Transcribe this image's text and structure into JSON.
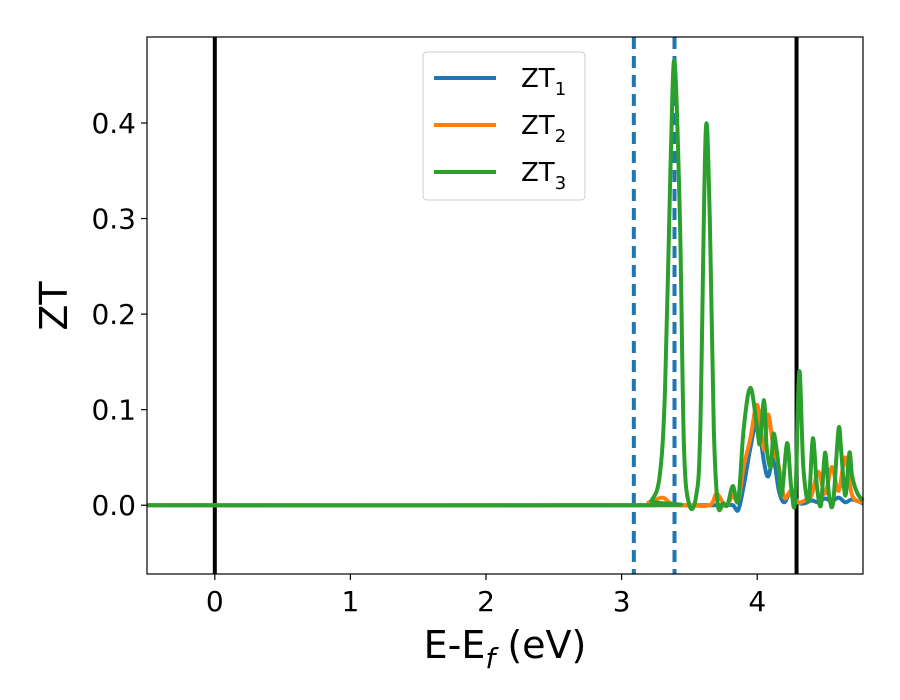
{
  "chart_data": {
    "type": "line",
    "xlabel": "E-E",
    "xlabel_sub": "f",
    "xlabel_unit": " (eV)",
    "ylabel": "ZT",
    "xlim": [
      -0.5,
      4.78
    ],
    "ylim": [
      -0.072,
      0.49
    ],
    "xticks": [
      0,
      1,
      2,
      3,
      4
    ],
    "yticks": [
      0.0,
      0.1,
      0.2,
      0.3,
      0.4
    ],
    "xtick_labels": [
      "0",
      "1",
      "2",
      "3",
      "4"
    ],
    "ytick_labels": [
      "0.0",
      "0.1",
      "0.2",
      "0.3",
      "0.4"
    ],
    "legend_position": "top-center",
    "vlines_solid": [
      0,
      4.29
    ],
    "vlines_dashed": [
      3.09,
      3.39
    ],
    "vline_solid_color": "#000000",
    "vline_dashed_color": "#1f77b4",
    "series": [
      {
        "name": "ZT",
        "name_sub": "1",
        "color": "#1f77b4",
        "x": [
          -0.5,
          3.0,
          3.5,
          3.75,
          3.82,
          3.86,
          3.9,
          3.95,
          4.0,
          4.05,
          4.08,
          4.12,
          4.16,
          4.2,
          4.25,
          4.3,
          4.35,
          4.4,
          4.45,
          4.5,
          4.55,
          4.6,
          4.65,
          4.7,
          4.78
        ],
        "y": [
          0.0,
          0.0,
          0.0,
          0.0,
          0.0,
          -0.005,
          0.02,
          0.06,
          0.088,
          0.045,
          0.03,
          0.048,
          0.015,
          0.003,
          0.015,
          0.003,
          0.002,
          0.005,
          0.003,
          0.007,
          0.004,
          0.008,
          0.003,
          0.006,
          0.002
        ]
      },
      {
        "name": "ZT",
        "name_sub": "2",
        "color": "#ff7f0e",
        "x": [
          -0.5,
          3.1,
          3.2,
          3.3,
          3.35,
          3.4,
          3.5,
          3.65,
          3.7,
          3.75,
          3.78,
          3.82,
          3.86,
          3.9,
          3.95,
          4.0,
          4.05,
          4.08,
          4.12,
          4.16,
          4.2,
          4.25,
          4.3,
          4.35,
          4.4,
          4.45,
          4.5,
          4.55,
          4.6,
          4.65,
          4.7,
          4.78
        ],
        "y": [
          0.0,
          0.0,
          0.003,
          0.008,
          0.003,
          0.0,
          0.0,
          0.0,
          0.012,
          0.002,
          0.0,
          0.01,
          0.005,
          0.04,
          0.07,
          0.105,
          0.058,
          0.095,
          0.06,
          0.04,
          0.008,
          0.015,
          0.003,
          0.005,
          0.01,
          0.035,
          0.012,
          0.04,
          0.015,
          0.05,
          0.01,
          0.003
        ]
      },
      {
        "name": "ZT",
        "name_sub": "3",
        "color": "#2ca02c",
        "x": [
          -0.5,
          3.15,
          3.22,
          3.28,
          3.32,
          3.36,
          3.39,
          3.43,
          3.46,
          3.5,
          3.55,
          3.58,
          3.62,
          3.65,
          3.68,
          3.71,
          3.75,
          3.78,
          3.82,
          3.86,
          3.9,
          3.95,
          4.0,
          4.02,
          4.05,
          4.07,
          4.1,
          4.12,
          4.15,
          4.18,
          4.22,
          4.25,
          4.28,
          4.31,
          4.34,
          4.38,
          4.41,
          4.44,
          4.47,
          4.5,
          4.53,
          4.56,
          4.6,
          4.62,
          4.65,
          4.68,
          4.7,
          4.74,
          4.78
        ],
        "y": [
          0.0,
          0.0,
          0.005,
          0.03,
          0.12,
          0.35,
          0.465,
          0.3,
          0.06,
          0.0,
          0.01,
          0.08,
          0.39,
          0.3,
          0.08,
          0.0,
          0.002,
          0.0,
          0.02,
          0.005,
          0.08,
          0.123,
          0.08,
          0.065,
          0.11,
          0.06,
          0.04,
          0.075,
          0.05,
          0.01,
          0.065,
          0.02,
          0.005,
          0.14,
          0.04,
          0.005,
          0.07,
          0.02,
          0.0,
          0.055,
          0.01,
          0.003,
          0.08,
          0.055,
          0.01,
          0.055,
          0.03,
          0.012,
          0.005
        ]
      }
    ]
  }
}
